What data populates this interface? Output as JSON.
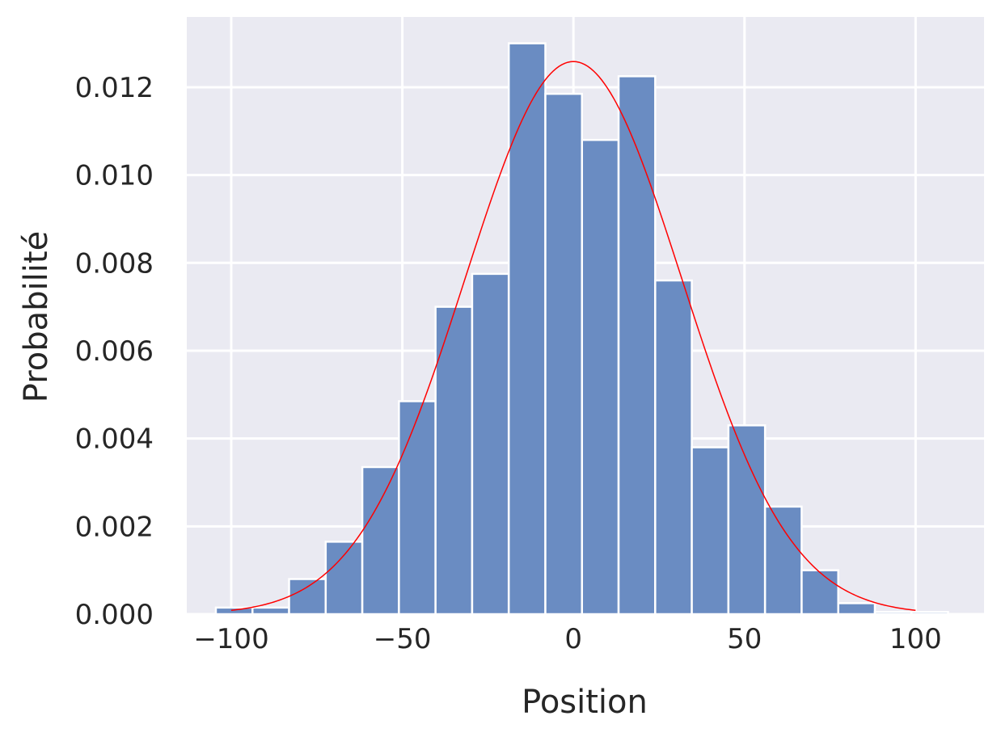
{
  "chart_data": {
    "type": "histogram",
    "xlabel": "Position",
    "ylabel": "Probabilité",
    "xlim": [
      -113,
      120
    ],
    "ylim": [
      0,
      0.0136
    ],
    "x_ticks": [
      -100,
      -50,
      0,
      50,
      100
    ],
    "x_tick_labels": [
      "−100",
      "−50",
      "0",
      "50",
      "100"
    ],
    "y_ticks": [
      0,
      0.002,
      0.004,
      0.006,
      0.008,
      0.01,
      0.012
    ],
    "y_tick_labels": [
      "0.000",
      "0.002",
      "0.004",
      "0.006",
      "0.008",
      "0.010",
      "0.012"
    ],
    "grid": true,
    "background_color": "#EAEAF2",
    "bar_color": "#6A8CC2",
    "bar_edge_color": "#ffffff",
    "curve_color": "#FF0000",
    "bins": {
      "edges": [
        -104.5,
        -93.8,
        -83.1,
        -72.4,
        -61.7,
        -51.0,
        -40.3,
        -29.6,
        -18.9,
        -8.2,
        2.5,
        13.2,
        23.9,
        34.6,
        45.3,
        56.0,
        66.7,
        77.4,
        88.1,
        98.8,
        109.5
      ],
      "values": [
        0.00015,
        0.00015,
        0.0008,
        0.00165,
        0.00335,
        0.00485,
        0.007,
        0.00775,
        0.013,
        0.01185,
        0.0108,
        0.01225,
        0.0076,
        0.0038,
        0.0043,
        0.00245,
        0.001,
        0.00025,
        5e-05,
        5e-05
      ]
    },
    "curve": {
      "type": "normal_pdf",
      "mean": 0,
      "std": 31.7,
      "x_range": [
        -100,
        100
      ]
    }
  }
}
